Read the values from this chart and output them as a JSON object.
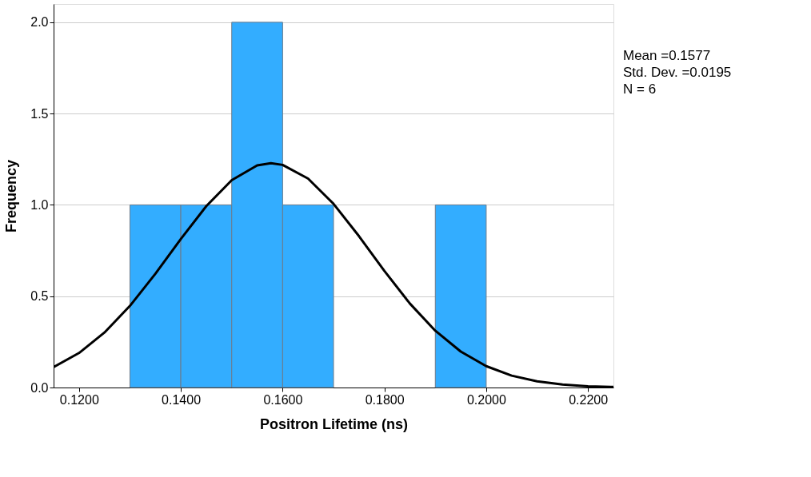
{
  "chart_data": {
    "type": "histogram",
    "xlabel": "Positron Lifetime (ns)",
    "ylabel": "Frequency",
    "bins": [
      0.13,
      0.14,
      0.15,
      0.16,
      0.17,
      0.18,
      0.19,
      0.2
    ],
    "values": [
      1,
      1,
      2,
      1,
      0,
      0,
      1
    ],
    "color": "#33adff",
    "series": [
      {
        "type": "line",
        "color": "#000000",
        "x": [
          0.115,
          0.12,
          0.125,
          0.13,
          0.135,
          0.14,
          0.145,
          0.15,
          0.155,
          0.1577,
          0.16,
          0.165,
          0.17,
          0.175,
          0.18,
          0.185,
          0.19,
          0.195,
          0.2,
          0.205,
          0.21,
          0.215,
          0.22,
          0.225
        ],
        "values": [
          0.112,
          0.189,
          0.301,
          0.447,
          0.623,
          0.813,
          0.993,
          1.135,
          1.216,
          1.228,
          1.219,
          1.144,
          1.006,
          0.829,
          0.638,
          0.46,
          0.311,
          0.197,
          0.117,
          0.065,
          0.034,
          0.016,
          0.007,
          0.003
        ]
      }
    ],
    "xlim": [
      0.115,
      0.225
    ],
    "ylim": [
      0,
      2.1
    ],
    "xticks": [
      {
        "value": 0.12,
        "label": "0.1200"
      },
      {
        "value": 0.14,
        "label": "0.1400"
      },
      {
        "value": 0.16,
        "label": "0.1600"
      },
      {
        "value": 0.18,
        "label": "0.1800"
      },
      {
        "value": 0.2,
        "label": "0.2000"
      },
      {
        "value": 0.22,
        "label": "0.2200"
      }
    ],
    "yticks": [
      {
        "value": 0,
        "label": "0.0"
      },
      {
        "value": 0.5,
        "label": "0.5"
      },
      {
        "value": 1,
        "label": "1.0"
      },
      {
        "value": 1.5,
        "label": "1.5"
      },
      {
        "value": 2,
        "label": "2.0"
      }
    ],
    "grid": "y",
    "annotations": [
      "Mean =0.1577",
      "Std. Dev. =0.0195",
      "N = 6"
    ]
  }
}
